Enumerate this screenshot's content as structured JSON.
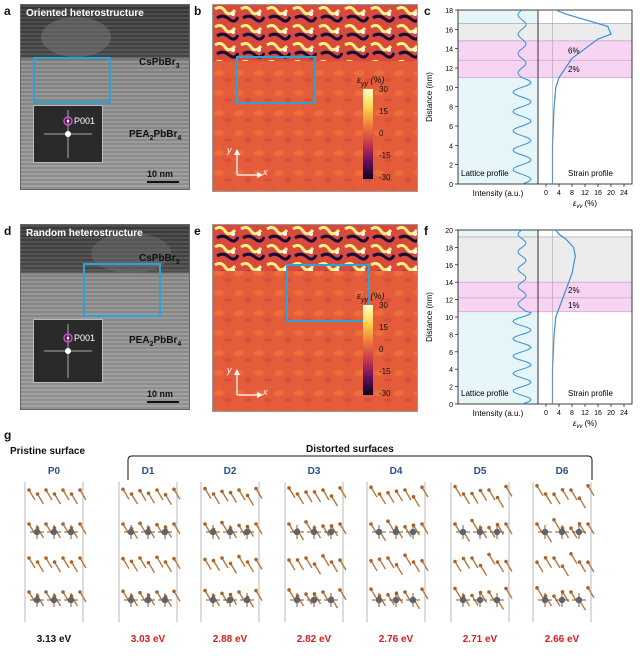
{
  "panels": {
    "a": {
      "letter": "a",
      "tag": "Oriented heterostructure",
      "top_material": "CsPbBr",
      "top_sub": "3",
      "bottom_material": "PEA",
      "bottom_sub1": "2",
      "bottom_mid": "PbBr",
      "bottom_sub2": "4",
      "fft_label": "P001",
      "scale": "10 nm"
    },
    "b": {
      "letter": "b",
      "cbar_title": "ε",
      "cbar_sub": "yy",
      "cbar_unit": " (%)",
      "ticks": [
        "30",
        "15",
        "0",
        "-15",
        "-30"
      ],
      "axis_x": "x",
      "axis_y": "y"
    },
    "c": {
      "letter": "c",
      "ylabel": "Distance (nm)",
      "yticks": [
        "0",
        "2",
        "4",
        "6",
        "8",
        "10",
        "12",
        "14",
        "16",
        "18"
      ],
      "xticks": [
        "0",
        "4",
        "8",
        "12",
        "16",
        "20",
        "24"
      ],
      "xlabel_left": "Intensity (a.u.)",
      "xlabel_right": "ε",
      "xlabel_right_sub": "yy",
      "xlabel_right_unit": " (%)",
      "lattice_label": "Lattice profile",
      "strain_label": "Strain profile",
      "annot_1": "6%",
      "annot_2": "2%"
    },
    "d": {
      "letter": "d",
      "tag": "Random heterostructure",
      "top_material": "CsPbBr",
      "top_sub": "3",
      "bottom_material": "PEA",
      "bottom_sub1": "2",
      "bottom_mid": "PbBr",
      "bottom_sub2": "4",
      "fft_label": "P001",
      "scale": "10 nm"
    },
    "e": {
      "letter": "e",
      "cbar_title": "ε",
      "cbar_sub": "yy",
      "cbar_unit": " (%)",
      "ticks": [
        "30",
        "15",
        "0",
        "-15",
        "-30"
      ],
      "axis_x": "x",
      "axis_y": "y"
    },
    "f": {
      "letter": "f",
      "ylabel": "Distance (nm)",
      "yticks": [
        "0",
        "2",
        "4",
        "6",
        "8",
        "10",
        "12",
        "14",
        "16",
        "18",
        "20"
      ],
      "xticks": [
        "0",
        "4",
        "8",
        "12",
        "16",
        "20",
        "24"
      ],
      "xlabel_left": "Intensity (a.u.)",
      "xlabel_right": "ε",
      "xlabel_right_sub": "yy",
      "xlabel_right_unit": " (%)",
      "lattice_label": "Lattice profile",
      "strain_label": "Strain profile",
      "annot_1": "2%",
      "annot_2": "1%"
    },
    "g": {
      "letter": "g",
      "pristine_title": "Pristine surface",
      "distorted_title": "Distorted surfaces",
      "structures": [
        {
          "name": "P0",
          "energy": "3.13 eV",
          "color": "#111111"
        },
        {
          "name": "D1",
          "energy": "3.03 eV",
          "color": "#d62020"
        },
        {
          "name": "D2",
          "energy": "2.88 eV",
          "color": "#d62020"
        },
        {
          "name": "D3",
          "energy": "2.82 eV",
          "color": "#d62020"
        },
        {
          "name": "D4",
          "energy": "2.76 eV",
          "color": "#d62020"
        },
        {
          "name": "D5",
          "energy": "2.71 eV",
          "color": "#d62020"
        },
        {
          "name": "D6",
          "energy": "2.66 eV",
          "color": "#d62020"
        }
      ]
    }
  },
  "chart_data": [
    {
      "type": "line",
      "panel": "c",
      "title": "",
      "ylabel": "Distance (nm)",
      "xlabel": "ε_yy (%)",
      "ylim": [
        0,
        18
      ],
      "xlim": [
        0,
        24
      ],
      "series": [
        {
          "name": "Strain profile",
          "x": [
            2,
            2,
            2.5,
            3,
            4,
            6,
            8,
            12,
            16,
            20,
            19,
            12,
            6,
            3
          ],
          "y": [
            0,
            4,
            8,
            10,
            11,
            12,
            13,
            14,
            15,
            15.5,
            16.3,
            17,
            17.6,
            18
          ]
        }
      ],
      "annotations": [
        "6%",
        "2%"
      ]
    },
    {
      "type": "line",
      "panel": "f",
      "title": "",
      "ylabel": "Distance (nm)",
      "xlabel": "ε_yy (%)",
      "ylim": [
        0,
        20
      ],
      "xlim": [
        0,
        24
      ],
      "series": [
        {
          "name": "Strain profile",
          "x": [
            2,
            2,
            2.5,
            3,
            4,
            5,
            6,
            8,
            9,
            8.5,
            6,
            4,
            3
          ],
          "y": [
            0,
            4,
            8,
            10,
            11,
            12,
            13,
            15,
            17,
            18,
            19,
            19.5,
            20
          ]
        }
      ],
      "annotations": [
        "2%",
        "1%"
      ]
    }
  ]
}
